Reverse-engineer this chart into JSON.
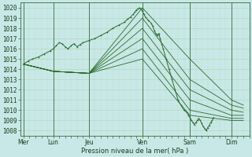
{
  "title": "",
  "xlabel": "Pression niveau de la mer( hPa )",
  "bg_color": "#c8e8e8",
  "grid_color_major": "#b0d4b0",
  "grid_color_minor": "#c0dcc0",
  "line_color": "#2a6a2a",
  "ylim": [
    1007.5,
    1020.5
  ],
  "yticks": [
    1008,
    1009,
    1010,
    1011,
    1012,
    1013,
    1014,
    1015,
    1016,
    1017,
    1018,
    1019,
    1020
  ],
  "xtick_labels": [
    "Mer",
    "Lun",
    "Jeu",
    "Ven",
    "Sam",
    "Dim"
  ],
  "xtick_positions": [
    0.0,
    1.0,
    2.2,
    4.0,
    5.6,
    7.0
  ],
  "xlim": [
    -0.1,
    7.6
  ],
  "vlines": [
    0.0,
    1.0,
    2.2,
    4.0,
    5.6,
    7.0
  ],
  "main_series": [
    [
      0.0,
      1014.5
    ],
    [
      0.15,
      1014.8
    ],
    [
      0.3,
      1015.0
    ],
    [
      0.5,
      1015.2
    ],
    [
      0.7,
      1015.5
    ],
    [
      0.9,
      1015.8
    ],
    [
      1.0,
      1016.0
    ],
    [
      1.1,
      1016.3
    ],
    [
      1.2,
      1016.6
    ],
    [
      1.3,
      1016.5
    ],
    [
      1.4,
      1016.2
    ],
    [
      1.5,
      1016.0
    ],
    [
      1.6,
      1016.3
    ],
    [
      1.7,
      1016.5
    ],
    [
      1.8,
      1016.2
    ],
    [
      1.9,
      1016.4
    ],
    [
      2.0,
      1016.6
    ],
    [
      2.2,
      1016.8
    ],
    [
      2.4,
      1017.0
    ],
    [
      2.6,
      1017.3
    ],
    [
      2.8,
      1017.6
    ],
    [
      3.0,
      1018.0
    ],
    [
      3.2,
      1018.3
    ],
    [
      3.4,
      1018.6
    ],
    [
      3.5,
      1018.9
    ],
    [
      3.6,
      1019.1
    ],
    [
      3.7,
      1019.4
    ],
    [
      3.75,
      1019.6
    ],
    [
      3.8,
      1019.8
    ],
    [
      3.85,
      1019.9
    ],
    [
      3.9,
      1020.0
    ],
    [
      3.95,
      1019.9
    ],
    [
      4.0,
      1019.7
    ],
    [
      4.05,
      1019.4
    ],
    [
      4.1,
      1019.1
    ],
    [
      4.2,
      1018.8
    ],
    [
      4.3,
      1018.5
    ],
    [
      4.35,
      1018.2
    ],
    [
      4.4,
      1017.8
    ],
    [
      4.45,
      1017.5
    ],
    [
      4.5,
      1017.3
    ],
    [
      4.55,
      1017.5
    ],
    [
      4.6,
      1017.0
    ],
    [
      4.65,
      1016.5
    ],
    [
      4.7,
      1016.0
    ],
    [
      4.8,
      1015.0
    ],
    [
      4.9,
      1014.0
    ],
    [
      5.0,
      1013.0
    ],
    [
      5.1,
      1012.0
    ],
    [
      5.2,
      1011.0
    ],
    [
      5.3,
      1010.5
    ],
    [
      5.4,
      1010.0
    ],
    [
      5.5,
      1009.8
    ],
    [
      5.55,
      1009.5
    ],
    [
      5.6,
      1009.3
    ],
    [
      5.65,
      1009.0
    ],
    [
      5.7,
      1008.8
    ],
    [
      5.75,
      1008.6
    ],
    [
      5.8,
      1008.8
    ],
    [
      5.85,
      1009.0
    ],
    [
      5.9,
      1009.2
    ],
    [
      5.95,
      1009.0
    ],
    [
      6.0,
      1008.7
    ],
    [
      6.05,
      1008.4
    ],
    [
      6.1,
      1008.2
    ],
    [
      6.15,
      1008.0
    ],
    [
      6.2,
      1008.3
    ],
    [
      6.25,
      1008.5
    ],
    [
      6.3,
      1008.8
    ],
    [
      6.35,
      1009.0
    ],
    [
      6.4,
      1009.3
    ]
  ],
  "fan_lines": [
    [
      [
        0.0,
        1014.5
      ],
      [
        1.0,
        1013.8
      ],
      [
        2.2,
        1013.6
      ],
      [
        4.0,
        1020.0
      ],
      [
        5.6,
        1015.0
      ],
      [
        7.0,
        1011.0
      ],
      [
        7.4,
        1010.5
      ]
    ],
    [
      [
        0.0,
        1014.5
      ],
      [
        1.0,
        1013.8
      ],
      [
        2.2,
        1013.6
      ],
      [
        4.0,
        1019.0
      ],
      [
        5.6,
        1013.0
      ],
      [
        7.0,
        1010.5
      ],
      [
        7.4,
        1010.2
      ]
    ],
    [
      [
        0.0,
        1014.5
      ],
      [
        1.0,
        1013.8
      ],
      [
        2.2,
        1013.6
      ],
      [
        4.0,
        1018.0
      ],
      [
        5.6,
        1012.0
      ],
      [
        7.0,
        1010.0
      ],
      [
        7.4,
        1009.8
      ]
    ],
    [
      [
        0.0,
        1014.5
      ],
      [
        1.0,
        1013.8
      ],
      [
        2.2,
        1013.6
      ],
      [
        4.0,
        1017.0
      ],
      [
        5.6,
        1011.0
      ],
      [
        7.0,
        1009.5
      ],
      [
        7.4,
        1009.5
      ]
    ],
    [
      [
        0.0,
        1014.5
      ],
      [
        1.0,
        1013.8
      ],
      [
        2.2,
        1013.6
      ],
      [
        4.0,
        1016.0
      ],
      [
        5.6,
        1010.0
      ],
      [
        7.0,
        1009.2
      ],
      [
        7.4,
        1009.2
      ]
    ],
    [
      [
        0.0,
        1014.5
      ],
      [
        1.0,
        1013.8
      ],
      [
        2.2,
        1013.6
      ],
      [
        4.0,
        1015.0
      ],
      [
        5.6,
        1009.5
      ],
      [
        7.0,
        1009.0
      ],
      [
        7.4,
        1009.0
      ]
    ]
  ]
}
